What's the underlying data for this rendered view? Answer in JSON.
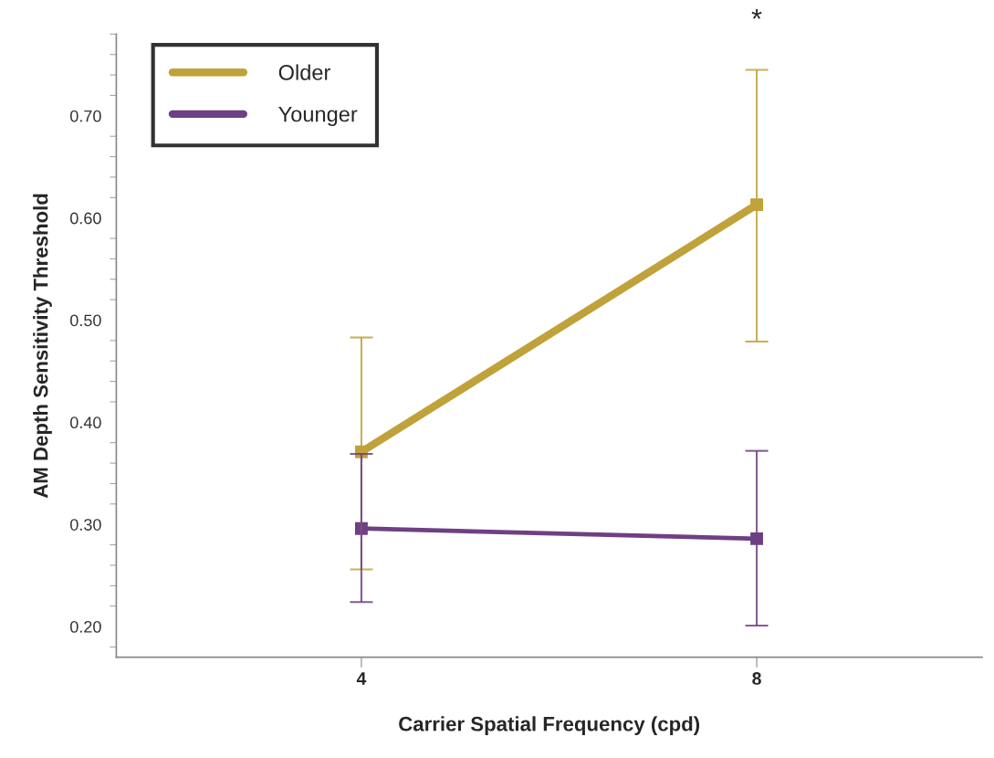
{
  "chart_data": {
    "type": "line",
    "xlabel": "Carrier Spatial Frequency (cpd)",
    "ylabel": "AM Depth Sensitivity Threshold",
    "categories": [
      "4",
      "8"
    ],
    "series": [
      {
        "name": "Older",
        "color": "#c0a23a",
        "values": [
          0.371,
          0.613
        ],
        "errors": [
          [
            0.256,
            0.483
          ],
          [
            0.479,
            0.745
          ]
        ]
      },
      {
        "name": "Younger",
        "color": "#6f3f85",
        "values": [
          0.296,
          0.286
        ],
        "errors": [
          [
            0.224,
            0.369
          ],
          [
            0.201,
            0.372
          ]
        ]
      }
    ],
    "ylim": [
      0.17,
      0.78
    ],
    "yticks": [
      {
        "value": 0.2,
        "label": "0.20"
      },
      {
        "value": 0.3,
        "label": "0.30"
      },
      {
        "value": 0.4,
        "label": "0.40"
      },
      {
        "value": 0.5,
        "label": "0.50"
      },
      {
        "value": 0.6,
        "label": "0.60"
      },
      {
        "value": 0.7,
        "label": "0.70"
      }
    ],
    "annotations": [
      "*"
    ],
    "grid": false,
    "legend": "top left",
    "marker": "square",
    "line_style": "solid"
  }
}
